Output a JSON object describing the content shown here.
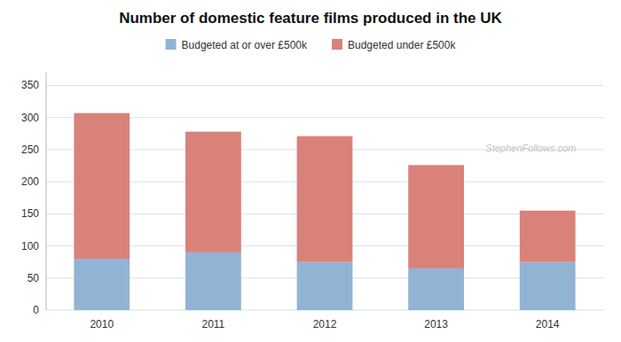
{
  "chart_data": {
    "type": "bar",
    "title": "Number of domestic feature films produced in the UK",
    "categories": [
      "2010",
      "2011",
      "2012",
      "2013",
      "2014"
    ],
    "series": [
      {
        "name": "Budgeted at or over £500k",
        "color": "#92b4d4",
        "values": [
          80,
          90,
          75,
          65,
          75
        ]
      },
      {
        "name": "Budgeted under £500k",
        "color": "#d9827a",
        "values": [
          227,
          188,
          196,
          161,
          80
        ]
      }
    ],
    "stacked": true,
    "ylim": [
      0,
      370
    ],
    "yticks": [
      0,
      50,
      100,
      150,
      200,
      250,
      300,
      350
    ],
    "grid": true,
    "legend": "top",
    "annotations": [
      "StephenFollows.com"
    ]
  }
}
